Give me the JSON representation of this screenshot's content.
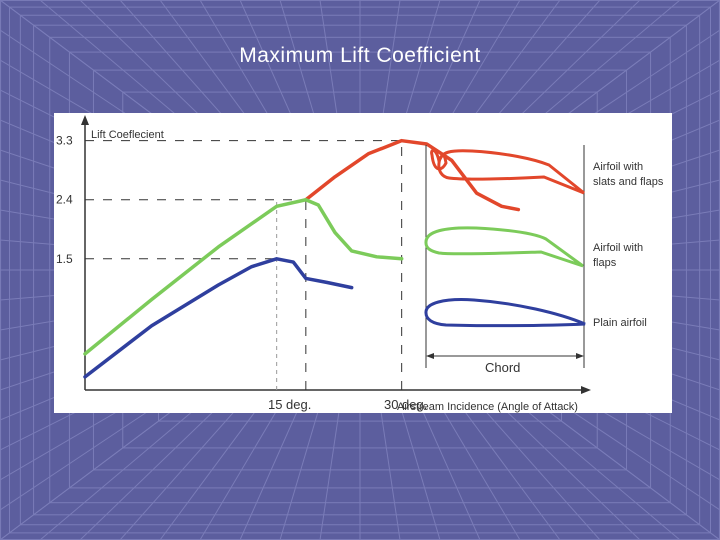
{
  "slide": {
    "title": "Maximum Lift Coefficient"
  },
  "colors": {
    "background": "#5c5e9e",
    "grid": "#7a7cb8",
    "panel": "#ffffff",
    "axis": "#333333",
    "red": "#e2472b",
    "green": "#7ccb5a",
    "blue": "#2f3f9e"
  },
  "chart_data": {
    "type": "line",
    "title": "Maximum Lift Coefficient",
    "ylabel": "Lift Coeflecient",
    "xlabel": "Airstream Incidence (Angle of Attack)",
    "y_ticks": [
      {
        "value": 3.3,
        "label": "3.3"
      },
      {
        "value": 2.4,
        "label": "2.4"
      },
      {
        "value": 1.5,
        "label": "1.5"
      }
    ],
    "x_ticks": [
      {
        "value": 15,
        "label": "15 deg."
      },
      {
        "value": 30,
        "label": "30 deg."
      }
    ],
    "xlim": [
      -8,
      52
    ],
    "ylim": [
      -0.5,
      3.6
    ],
    "reference_lines": {
      "y": [
        3.3,
        2.4,
        1.5
      ],
      "x": [
        15,
        18.5,
        30
      ]
    },
    "series": [
      {
        "name": "Airfoil with slats and flaps",
        "color": "#e2472b",
        "points": [
          [
            18.5,
            2.4
          ],
          [
            22,
            2.75
          ],
          [
            26,
            3.1
          ],
          [
            30,
            3.3
          ],
          [
            33,
            3.25
          ],
          [
            36,
            3.0
          ],
          [
            39,
            2.5
          ],
          [
            42,
            2.3
          ],
          [
            44,
            2.25
          ]
        ]
      },
      {
        "name": "Airfoil with flaps",
        "color": "#7ccb5a",
        "points": [
          [
            -8,
            0.05
          ],
          [
            0,
            0.88
          ],
          [
            8,
            1.68
          ],
          [
            15,
            2.3
          ],
          [
            18.5,
            2.4
          ],
          [
            20,
            2.32
          ],
          [
            22,
            1.9
          ],
          [
            24,
            1.62
          ],
          [
            27,
            1.53
          ],
          [
            30,
            1.5
          ]
        ]
      },
      {
        "name": "Plain airfoil",
        "color": "#2f3f9e",
        "points": [
          [
            -8,
            -0.3
          ],
          [
            0,
            0.48
          ],
          [
            8,
            1.1
          ],
          [
            12,
            1.38
          ],
          [
            15,
            1.5
          ],
          [
            17,
            1.45
          ],
          [
            18.5,
            1.2
          ],
          [
            21,
            1.14
          ],
          [
            24,
            1.06
          ]
        ]
      }
    ]
  },
  "diagram": {
    "labels": {
      "red": "Airfoil with slats and flaps",
      "green": "Airfoil with flaps",
      "blue": "Plain airfoil",
      "chord": "Chord"
    }
  }
}
